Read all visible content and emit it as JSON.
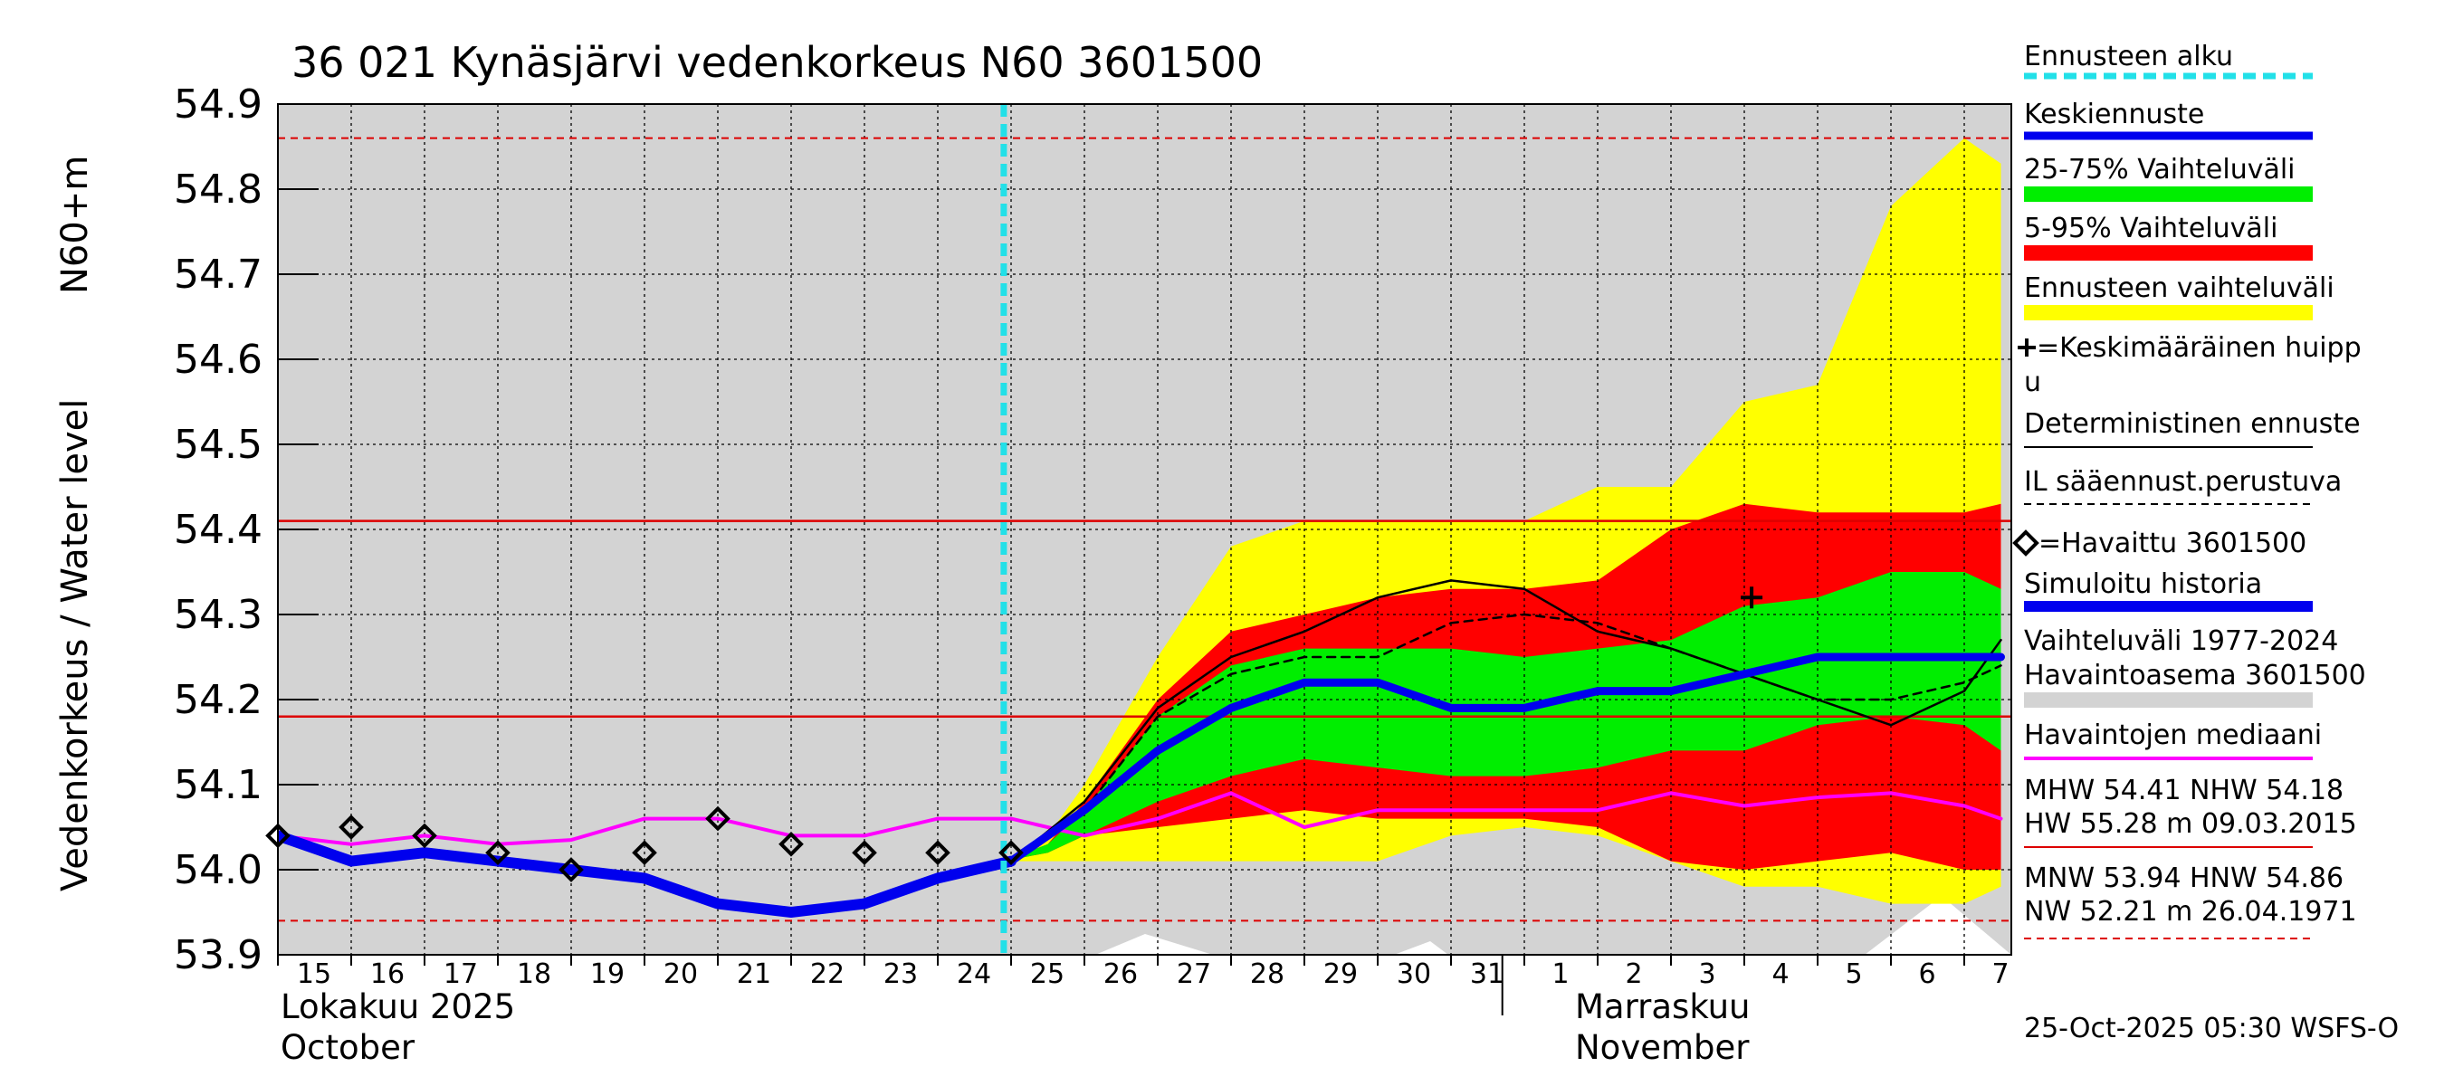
{
  "chart_data": {
    "type": "line",
    "title": "36 021 Kynäsjärvi vedenkorkeus N60 3601500",
    "ylabel_1": "Vedenkorkeus / Water level",
    "ylabel_2": "N60+m",
    "ylim": [
      53.9,
      54.9
    ],
    "yticks": [
      "53.9",
      "54.0",
      "54.1",
      "54.2",
      "54.3",
      "54.4",
      "54.5",
      "54.6",
      "54.7",
      "54.8",
      "54.9"
    ],
    "x_day_index_range": [
      0,
      23.5
    ],
    "day_ticks": [
      {
        "i": 0,
        "label": "15"
      },
      {
        "i": 1,
        "label": "16"
      },
      {
        "i": 2,
        "label": "17"
      },
      {
        "i": 3,
        "label": "18"
      },
      {
        "i": 4,
        "label": "19"
      },
      {
        "i": 5,
        "label": "20"
      },
      {
        "i": 6,
        "label": "21"
      },
      {
        "i": 7,
        "label": "22"
      },
      {
        "i": 8,
        "label": "23"
      },
      {
        "i": 9,
        "label": "24"
      },
      {
        "i": 10,
        "label": "25"
      },
      {
        "i": 11,
        "label": "26"
      },
      {
        "i": 12,
        "label": "27"
      },
      {
        "i": 13,
        "label": "28"
      },
      {
        "i": 14,
        "label": "29"
      },
      {
        "i": 15,
        "label": "30"
      },
      {
        "i": 16,
        "label": "31"
      },
      {
        "i": 17,
        "label": "1"
      },
      {
        "i": 18,
        "label": "2"
      },
      {
        "i": 19,
        "label": "3"
      },
      {
        "i": 20,
        "label": "4"
      },
      {
        "i": 21,
        "label": "5"
      },
      {
        "i": 22,
        "label": "6"
      },
      {
        "i": 23,
        "label": "7"
      }
    ],
    "month_labels": [
      {
        "i": 0,
        "line1": "Lokakuu  2025",
        "line2": "October"
      },
      {
        "i": 17.8,
        "line1": "Marraskuu",
        "line2": "November"
      }
    ],
    "month_divider_i": 16.7,
    "forecast_start_i": 9.9,
    "reference_lines": {
      "MHW": 54.41,
      "NHW": 54.18,
      "HNW": 54.86,
      "MNW": 53.94
    },
    "series": {
      "ennusteen_vaihteluvali": {
        "x": [
          9.9,
          10.5,
          11,
          12,
          13,
          14,
          15,
          16,
          17,
          18,
          19,
          20,
          21,
          22,
          23,
          23.5
        ],
        "upper": [
          54.01,
          54.04,
          54.1,
          54.25,
          54.38,
          54.41,
          54.41,
          54.41,
          54.41,
          54.45,
          54.45,
          54.55,
          54.57,
          54.78,
          54.86,
          54.83
        ],
        "lower": [
          54.01,
          54.01,
          54.01,
          54.01,
          54.01,
          54.01,
          54.01,
          54.04,
          54.05,
          54.04,
          54.01,
          53.98,
          53.98,
          53.96,
          53.96,
          53.98
        ]
      },
      "vaihteluvali_5_95": {
        "x": [
          9.9,
          10.5,
          11,
          12,
          13,
          14,
          15,
          16,
          17,
          18,
          19,
          20,
          21,
          22,
          23,
          23.5
        ],
        "upper": [
          54.01,
          54.03,
          54.08,
          54.2,
          54.28,
          54.3,
          54.32,
          54.33,
          54.33,
          54.34,
          54.4,
          54.43,
          54.42,
          54.42,
          54.42,
          54.43
        ],
        "lower": [
          54.01,
          54.02,
          54.04,
          54.05,
          54.06,
          54.07,
          54.06,
          54.06,
          54.06,
          54.05,
          54.01,
          54.0,
          54.01,
          54.02,
          54.0,
          54.0
        ]
      },
      "vaihteluvali_25_75": {
        "x": [
          9.9,
          10.5,
          11,
          12,
          13,
          14,
          15,
          16,
          17,
          18,
          19,
          20,
          21,
          22,
          23,
          23.5
        ],
        "upper": [
          54.01,
          54.03,
          54.07,
          54.18,
          54.24,
          54.26,
          54.26,
          54.26,
          54.25,
          54.26,
          54.27,
          54.31,
          54.32,
          54.35,
          54.35,
          54.33
        ],
        "lower": [
          54.01,
          54.02,
          54.04,
          54.08,
          54.11,
          54.13,
          54.12,
          54.11,
          54.11,
          54.12,
          54.14,
          54.14,
          54.17,
          54.18,
          54.17,
          54.14
        ]
      },
      "simuloitu_historia": {
        "x": [
          0,
          1,
          2,
          3,
          4,
          5,
          6,
          7,
          8,
          9,
          10
        ],
        "y": [
          54.04,
          54.01,
          54.02,
          54.01,
          54.0,
          53.99,
          53.96,
          53.95,
          53.96,
          53.99,
          54.01
        ]
      },
      "keskiennuste": {
        "x": [
          10,
          11,
          12,
          13,
          14,
          15,
          16,
          17,
          18,
          19,
          20,
          21,
          22,
          23,
          23.5
        ],
        "y": [
          54.01,
          54.07,
          54.14,
          54.19,
          54.22,
          54.22,
          54.19,
          54.19,
          54.21,
          54.21,
          54.23,
          54.25,
          54.25,
          54.25,
          54.25
        ]
      },
      "deterministinen": {
        "x": [
          10,
          11,
          12,
          13,
          14,
          15,
          16,
          17,
          18,
          19,
          20,
          21,
          22,
          23,
          23.5
        ],
        "y": [
          54.01,
          54.08,
          54.19,
          54.25,
          54.28,
          54.32,
          54.34,
          54.33,
          54.28,
          54.26,
          54.23,
          54.2,
          54.17,
          54.21,
          54.27
        ]
      },
      "il_saaennuste": {
        "x": [
          10,
          11,
          12,
          13,
          14,
          15,
          16,
          17,
          18,
          19,
          20,
          21,
          22,
          23,
          23.5
        ],
        "y": [
          54.01,
          54.07,
          54.18,
          54.23,
          54.25,
          54.25,
          54.29,
          54.3,
          54.29,
          54.26,
          54.23,
          54.2,
          54.2,
          54.22,
          54.24
        ]
      },
      "havaintojen_mediaani": {
        "x": [
          0,
          1,
          2,
          3,
          4,
          5,
          6,
          7,
          8,
          9,
          10,
          11,
          12,
          13,
          14,
          15,
          16,
          17,
          18,
          19,
          20,
          21,
          22,
          23,
          23.5
        ],
        "y": [
          54.04,
          54.03,
          54.04,
          54.03,
          54.035,
          54.06,
          54.06,
          54.04,
          54.04,
          54.06,
          54.06,
          54.04,
          54.06,
          54.09,
          54.05,
          54.07,
          54.07,
          54.07,
          54.07,
          54.09,
          54.075,
          54.085,
          54.09,
          54.075,
          54.06
        ]
      },
      "havaittu": {
        "x": [
          0,
          1,
          2,
          3,
          4,
          5,
          6,
          7,
          8,
          9,
          10
        ],
        "y": [
          54.04,
          54.05,
          54.04,
          54.02,
          54.0,
          54.02,
          54.06,
          54.03,
          54.02,
          54.02,
          54.02
        ]
      },
      "keskimaarainen_huippu": {
        "x": 20.1,
        "y": 54.32
      }
    }
  },
  "legend": [
    {
      "key": "forecast_start",
      "label": "Ennusteen alku",
      "color": "#22e0e8"
    },
    {
      "key": "mean_forecast",
      "label": "Keskiennuste",
      "color": "#0000ee"
    },
    {
      "key": "range_25_75",
      "label": "25-75% Vaihteluväli",
      "color": "#00ee00"
    },
    {
      "key": "range_5_95",
      "label": "5-95% Vaihteluväli",
      "color": "#ff0000"
    },
    {
      "key": "forecast_range",
      "label": "Ennusteen vaihteluväli",
      "color": "#ffff00"
    },
    {
      "key": "mean_peak",
      "label_1": "=Keskimääräinen huipp",
      "label_2": "u",
      "color": "#000000"
    },
    {
      "key": "deterministic",
      "label": "Deterministinen ennuste",
      "color": "#000000"
    },
    {
      "key": "il_weather",
      "label": "IL sääennust.perustuva",
      "color": "#000000"
    },
    {
      "key": "observed",
      "label": "=Havaittu 3601500",
      "color": "#000000"
    },
    {
      "key": "simulated",
      "label": "Simuloitu historia",
      "color": "#0000ee"
    },
    {
      "key": "hist_range",
      "label_1": "Vaihteluväli 1977-2024",
      "label_2": " Havaintoasema 3601500",
      "color": "#d3d3d3"
    },
    {
      "key": "median",
      "label": "Havaintojen mediaani",
      "color": "#ff00ff"
    }
  ],
  "stats": {
    "mhw_line": "MHW  54.41 NHW  54.18",
    "hw_line": "HW  55.28 m 09.03.2015",
    "mnw_line": "MNW  53.94 HNW  54.86",
    "nw_line": "NW  52.21 m 26.04.1971"
  },
  "footer": "25-Oct-2025 05:30 WSFS-O",
  "colors": {
    "history_background": "#d3d3d3",
    "forecast_start": "#22e0e8",
    "mean": "#0000ee",
    "p25_75": "#00ee00",
    "p5_95": "#ff0000",
    "full_range": "#ffff00",
    "median": "#ff00ff",
    "reference": "#dd0000"
  }
}
